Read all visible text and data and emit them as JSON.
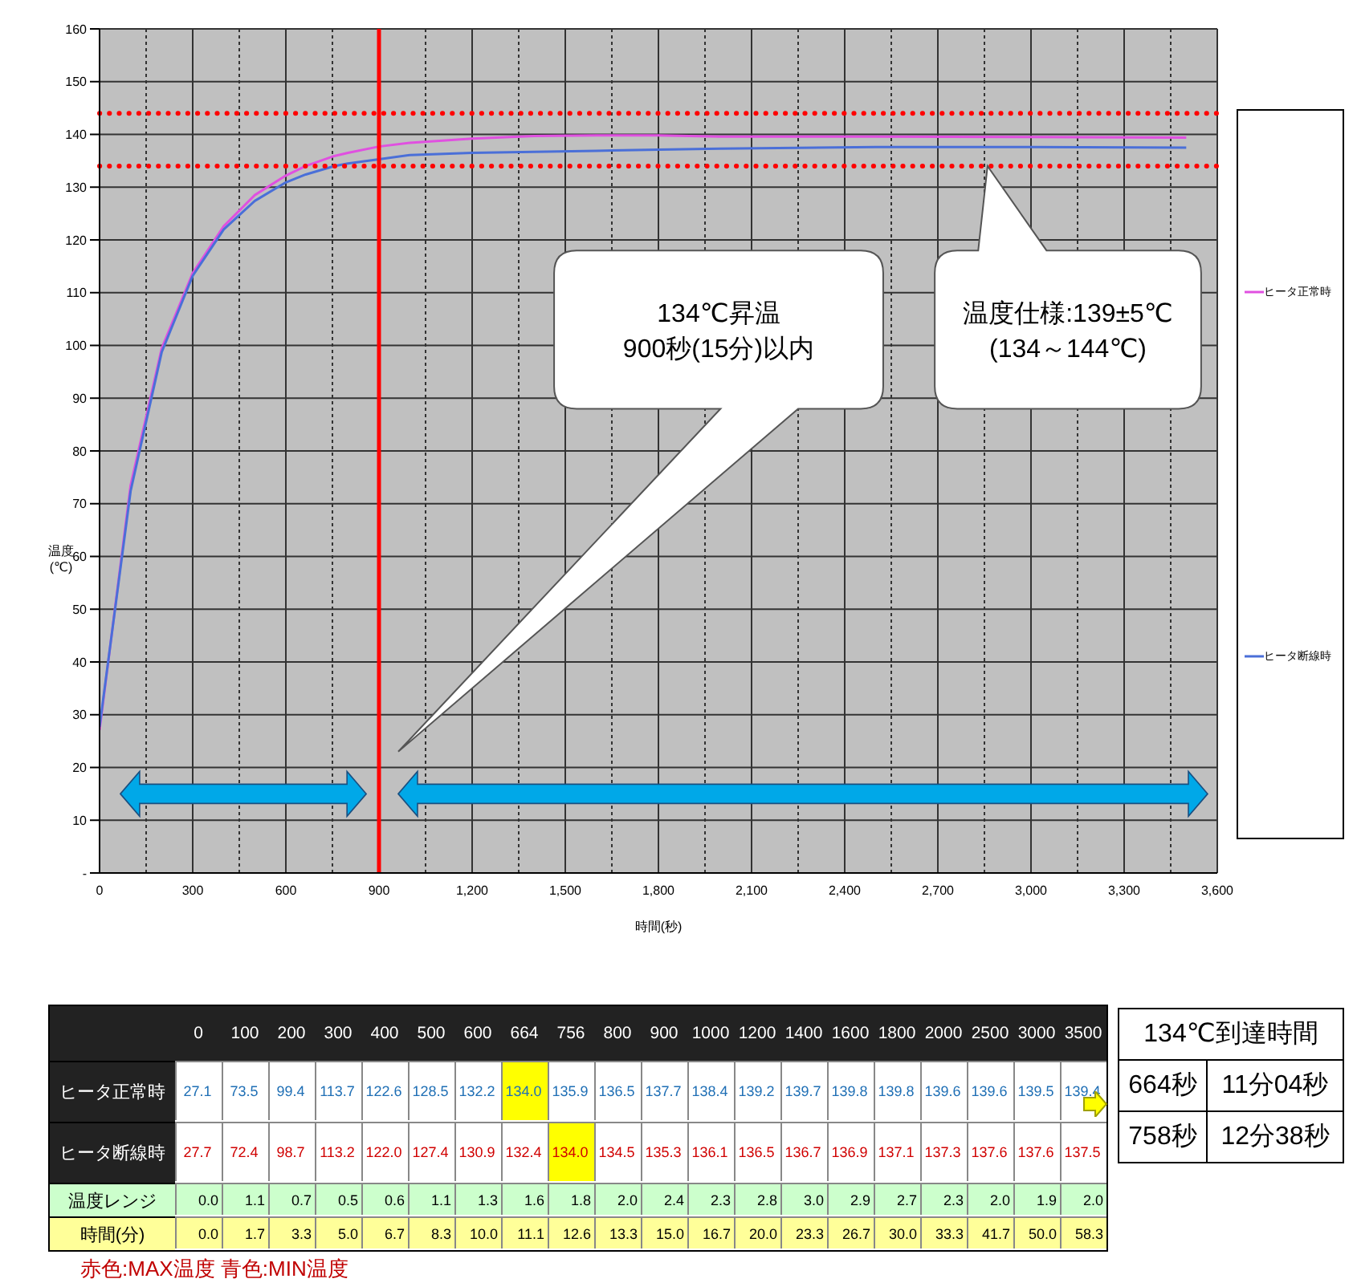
{
  "chart_data": [
    {
      "type": "line",
      "xlabel": "時間(秒)",
      "ylabel": "温度\n(℃)",
      "x": [
        0,
        100,
        200,
        300,
        400,
        500,
        600,
        664,
        756,
        800,
        900,
        1000,
        1200,
        1400,
        1600,
        1800,
        2000,
        2500,
        3000,
        3500
      ],
      "series": [
        {
          "name": "ヒータ正常時",
          "color": "#e050e0",
          "values": [
            27.1,
            73.5,
            99.4,
            113.7,
            122.6,
            128.5,
            132.2,
            134.0,
            135.9,
            136.5,
            137.7,
            138.4,
            139.2,
            139.7,
            139.8,
            139.8,
            139.6,
            139.6,
            139.5,
            139.4
          ]
        },
        {
          "name": "ヒータ断線時",
          "color": "#4a6fd8",
          "values": [
            27.7,
            72.4,
            98.7,
            113.2,
            122.0,
            127.4,
            130.9,
            132.4,
            134.0,
            134.5,
            135.3,
            136.1,
            136.5,
            136.7,
            136.9,
            137.1,
            137.3,
            137.6,
            137.6,
            137.5
          ]
        }
      ],
      "xlim": [
        0,
        3600
      ],
      "xticks": [
        0,
        {
          "value": 150,
          "label": null
        },
        {
          "value": 300,
          "label": "300"
        },
        {
          "value": 450,
          "label": null
        },
        {
          "value": 600,
          "label": "600"
        },
        {
          "value": 750,
          "label": null
        },
        {
          "value": 900,
          "label": "900"
        },
        {
          "value": 1050,
          "label": null
        },
        {
          "value": 1200,
          "label": "1,200"
        },
        {
          "value": 1350,
          "label": null
        },
        {
          "value": 1500,
          "label": "1,500"
        },
        {
          "value": 1650,
          "label": null
        },
        {
          "value": 1800,
          "label": "1,800"
        },
        {
          "value": 1950,
          "label": null
        },
        {
          "value": 2100,
          "label": "2,100"
        },
        {
          "value": 2250,
          "label": null
        },
        {
          "value": 2400,
          "label": "2,400"
        },
        {
          "value": 2550,
          "label": null
        },
        {
          "value": 2700,
          "label": "2,700"
        },
        {
          "value": 2850,
          "label": null
        },
        {
          "value": 3000,
          "label": "3,000"
        },
        {
          "value": 3150,
          "label": null
        },
        {
          "value": 3300,
          "label": "3,300"
        },
        {
          "value": 3450,
          "label": null
        },
        {
          "value": 3600,
          "label": "3,600"
        }
      ],
      "ylim": [
        0,
        160
      ],
      "yticks": [
        {
          "value": 0,
          "label": "-"
        },
        10,
        20,
        30,
        40,
        50,
        60,
        70,
        80,
        90,
        100,
        110,
        120,
        130,
        140,
        150,
        160
      ],
      "grid": true,
      "legend": "right",
      "marker": "none",
      "ref_lines": [
        {
          "axis": "y",
          "value": 144,
          "color": "#ff0000",
          "line_style": "dotted"
        },
        {
          "axis": "y",
          "value": 134,
          "color": "#ff0000",
          "line_style": "dotted"
        },
        {
          "axis": "x",
          "value": 900,
          "color": "#ff0000",
          "line_style": "solid"
        }
      ],
      "annotations": [
        "134℃昇温\n900秒(15分)以内",
        "温度仕様:139±5℃\n(134～144℃)"
      ]
    },
    {
      "type": "other",
      "categories": [
        "0",
        "100",
        "200",
        "300",
        "400",
        "500",
        "600",
        "664",
        "756",
        "800",
        "900",
        "1000",
        "1200",
        "1400",
        "1600",
        "1800",
        "2000",
        "2500",
        "3000",
        "3500"
      ],
      "series": [
        {
          "name": "ヒータ正常時",
          "colors": [
            "#ffffff",
            "#ffffff",
            "#ffffff",
            "#ffffff",
            "#ffffff",
            "#ffffff",
            "#ffffff",
            "#ffff00",
            "#ffffff",
            "#ffffff",
            "#ffffff",
            "#ffffff",
            "#ffffff",
            "#ffffff",
            "#ffffff",
            "#ffffff",
            "#ffffff",
            "#ffffff",
            "#ffffff",
            "#ffffff"
          ],
          "values": [
            27.1,
            73.5,
            99.4,
            113.7,
            122.6,
            128.5,
            132.2,
            134.0,
            135.9,
            136.5,
            137.7,
            138.4,
            139.2,
            139.7,
            139.8,
            139.8,
            139.6,
            139.6,
            139.5,
            139.4
          ],
          "value_labels": [
            "27.1",
            "73.5",
            "99.4",
            "113.7",
            "122.6",
            "128.5",
            "132.2",
            "134.0",
            "135.9",
            "136.5",
            "137.7",
            "138.4",
            "139.2",
            "139.7",
            "139.8",
            "139.8",
            "139.6",
            "139.6",
            "139.5",
            "139.4"
          ]
        },
        {
          "name": "ヒータ断線時",
          "colors": [
            "#ffffff",
            "#ffffff",
            "#ffffff",
            "#ffffff",
            "#ffffff",
            "#ffffff",
            "#ffffff",
            "#ffffff",
            "#ffff00",
            "#ffffff",
            "#ffffff",
            "#ffffff",
            "#ffffff",
            "#ffffff",
            "#ffffff",
            "#ffffff",
            "#ffffff",
            "#ffffff",
            "#ffffff",
            "#ffffff"
          ],
          "values": [
            27.7,
            72.4,
            98.7,
            113.2,
            122.0,
            127.4,
            130.9,
            132.4,
            134.0,
            134.5,
            135.3,
            136.1,
            136.5,
            136.7,
            136.9,
            137.1,
            137.3,
            137.6,
            137.6,
            137.5
          ],
          "value_labels": [
            "27.7",
            "72.4",
            "98.7",
            "113.2",
            "122.0",
            "127.4",
            "130.9",
            "132.4",
            "134.0",
            "134.5",
            "135.3",
            "136.1",
            "136.5",
            "136.7",
            "136.9",
            "137.1",
            "137.3",
            "137.6",
            "137.6",
            "137.5"
          ]
        },
        {
          "name": "温度レンジ",
          "values": [
            0.0,
            1.1,
            0.7,
            0.5,
            0.6,
            1.1,
            1.3,
            1.6,
            1.8,
            2.0,
            2.4,
            2.3,
            2.8,
            3.0,
            2.9,
            2.7,
            2.3,
            2.0,
            1.9,
            2.0
          ],
          "value_labels": [
            "0.0",
            "1.1",
            "0.7",
            "0.5",
            "0.6",
            "1.1",
            "1.3",
            "1.6",
            "1.8",
            "2.0",
            "2.4",
            "2.3",
            "2.8",
            "3.0",
            "2.9",
            "2.7",
            "2.3",
            "2.0",
            "1.9",
            "2.0"
          ]
        },
        {
          "name": "時間(分)",
          "values": [
            0.0,
            1.7,
            3.3,
            5.0,
            6.7,
            8.3,
            10.0,
            11.1,
            12.6,
            13.3,
            15.0,
            16.7,
            20.0,
            23.3,
            26.7,
            30.0,
            33.3,
            41.7,
            50.0,
            58.3
          ],
          "value_labels": [
            "0.0",
            "1.7",
            "3.3",
            "5.0",
            "6.7",
            "8.3",
            "10.0",
            "11.1",
            "12.6",
            "13.3",
            "15.0",
            "16.7",
            "20.0",
            "23.3",
            "26.7",
            "30.0",
            "33.3",
            "41.7",
            "50.0",
            "58.3"
          ]
        }
      ],
      "legend": "bottom left",
      "annotations": [
        "赤色:MAX温度 青色:MIN温度"
      ]
    },
    {
      "type": "other",
      "title": "134℃到達時間",
      "annotations": [
        "664秒",
        "11分04秒",
        "758秒",
        "12分38秒"
      ]
    }
  ]
}
